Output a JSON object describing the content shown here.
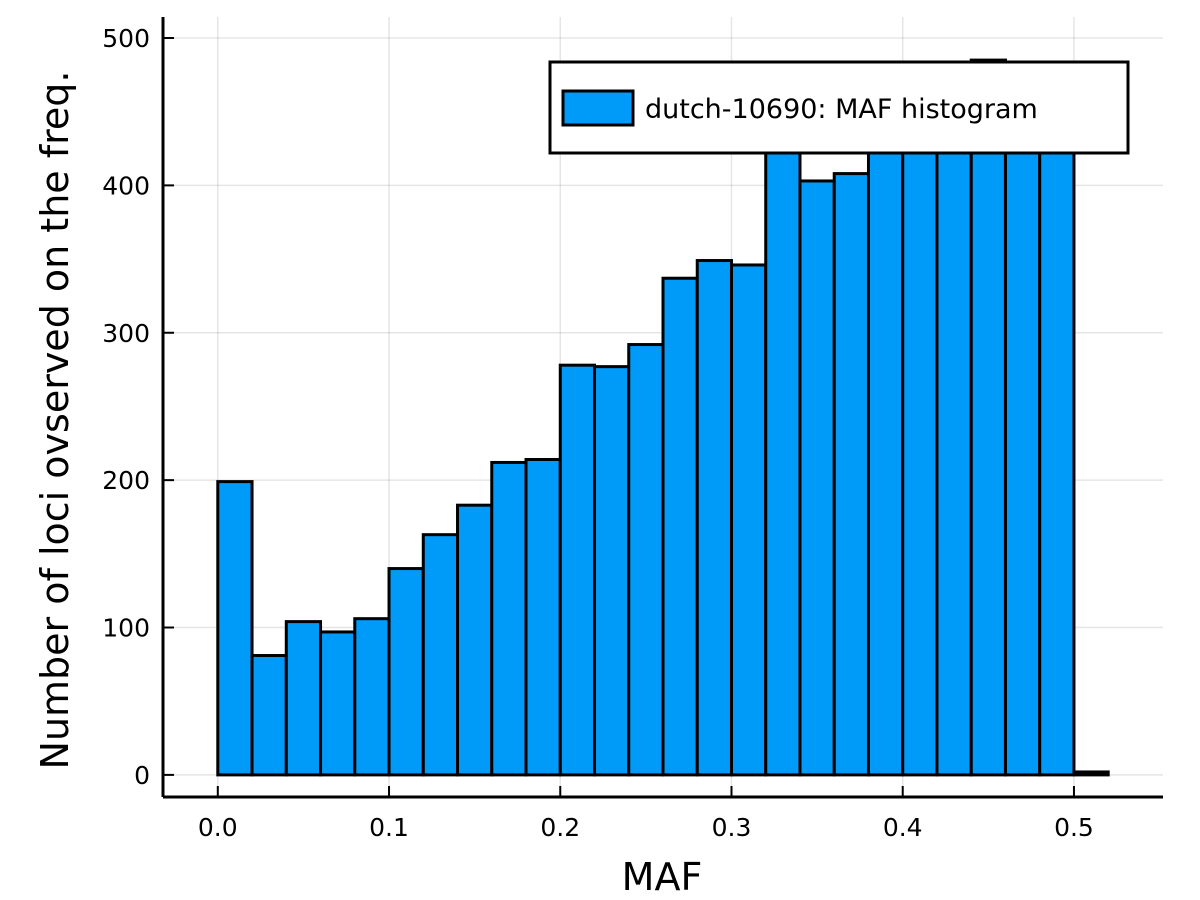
{
  "chart_data": {
    "type": "bar",
    "xlabel": "MAF",
    "ylabel": "Number of loci ovserved on the freq.",
    "bin_edges": [
      0.0,
      0.02,
      0.04,
      0.06,
      0.08,
      0.1,
      0.12,
      0.14,
      0.16,
      0.18,
      0.2,
      0.22,
      0.24,
      0.26,
      0.28,
      0.3,
      0.32,
      0.34,
      0.36,
      0.38,
      0.4,
      0.42,
      0.44,
      0.46,
      0.48,
      0.5,
      0.52
    ],
    "values": [
      199,
      81,
      104,
      97,
      106,
      140,
      163,
      183,
      212,
      214,
      278,
      277,
      292,
      337,
      349,
      346,
      425,
      403,
      408,
      425,
      425,
      425,
      485,
      425,
      425,
      2
    ],
    "xlim": [
      -0.032,
      0.552
    ],
    "ylim": [
      -15,
      500
    ],
    "xticks": [
      0.0,
      0.1,
      0.2,
      0.3,
      0.4,
      0.5
    ],
    "xtick_labels": [
      "0.0",
      "0.1",
      "0.2",
      "0.3",
      "0.4",
      "0.5"
    ],
    "yticks": [
      0,
      100,
      200,
      300,
      400,
      500
    ],
    "ytick_labels": [
      "0",
      "100",
      "200",
      "300",
      "400",
      "500"
    ],
    "grid": true,
    "legend_position": "top-right",
    "series": [
      {
        "name": "dutch-10690: MAF histogram",
        "color": "#009af9"
      }
    ]
  }
}
